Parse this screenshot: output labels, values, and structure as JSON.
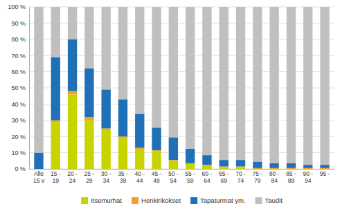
{
  "chart_data": {
    "type": "bar",
    "stacked": true,
    "grid": true,
    "legend": "bottom",
    "categories": [
      "Alle\n15 v",
      "15 -\n19",
      "20 -\n24",
      "25 -\n29",
      "30 -\n34",
      "35 -\n39",
      "40 -\n44",
      "45 -\n49",
      "50 -\n54",
      "55 -\n59",
      "60 -\n64",
      "65 -\n69",
      "70 -\n74",
      "75 -\n79",
      "80 -\n84",
      "85 -\n89",
      "90 -\n94",
      "95 -"
    ],
    "series": [
      {
        "name": "Itsemurhat",
        "color": "#c8d400",
        "values": [
          0,
          29,
          46,
          30,
          24,
          19,
          12,
          11,
          5,
          3,
          2,
          1,
          1,
          0,
          0,
          0,
          0,
          0
        ]
      },
      {
        "name": "Henkirikokset",
        "color": "#f0a030",
        "values": [
          0,
          1,
          2,
          2,
          1,
          1,
          1,
          0.5,
          0.5,
          0.5,
          0.5,
          0.5,
          0.5,
          0.5,
          0.5,
          0.5,
          0.5,
          0.5
        ]
      },
      {
        "name": "Tapaturmat ym.",
        "color": "#2070b8",
        "values": [
          10,
          39,
          32,
          30,
          24,
          23,
          21,
          14,
          14,
          9,
          6,
          4,
          4,
          4,
          3,
          3,
          2,
          2
        ]
      },
      {
        "name": "Taudit",
        "color": "#c0c0c0",
        "values": [
          90,
          31,
          20,
          38,
          51,
          57,
          66,
          74.5,
          80.5,
          87.5,
          91.5,
          94.5,
          94.5,
          95.5,
          96.5,
          96.5,
          97.5,
          97.5
        ]
      }
    ],
    "ylim": [
      0,
      100
    ],
    "yticks": [
      {
        "value": 0,
        "label": "0 %"
      },
      {
        "value": 10,
        "label": "10 %"
      },
      {
        "value": 20,
        "label": "20 %"
      },
      {
        "value": 30,
        "label": "30 %"
      },
      {
        "value": 40,
        "label": "40 %"
      },
      {
        "value": 50,
        "label": "50 %"
      },
      {
        "value": 60,
        "label": "60 %"
      },
      {
        "value": 70,
        "label": "70 %"
      },
      {
        "value": 80,
        "label": "80 %"
      },
      {
        "value": 90,
        "label": "90 %"
      },
      {
        "value": 100,
        "label": "100 %"
      }
    ]
  }
}
